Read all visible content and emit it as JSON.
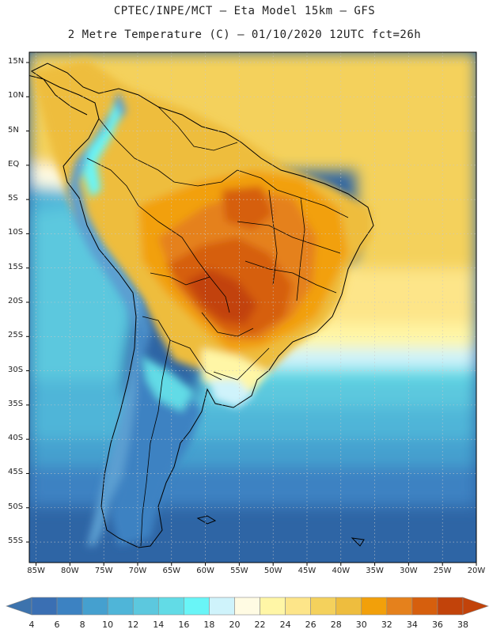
{
  "header": {
    "line1": "CPTEC/INPE/MCT –  Eta Model 15km – GFS",
    "line2": "2 Metre Temperature (C) – 01/10/2020 12UTC fct=26h"
  },
  "lat_labels": [
    "15N",
    "10N",
    "5N",
    "EQ",
    "5S",
    "10S",
    "15S",
    "20S",
    "25S",
    "30S",
    "35S",
    "40S",
    "45S",
    "50S",
    "55S"
  ],
  "lon_labels": [
    "85W",
    "80W",
    "75W",
    "70W",
    "65W",
    "60W",
    "55W",
    "50W",
    "45W",
    "40W",
    "35W",
    "30W",
    "25W",
    "20W"
  ],
  "colorbar": {
    "labels": [
      "4",
      "6",
      "8",
      "10",
      "12",
      "14",
      "16",
      "18",
      "20",
      "22",
      "24",
      "26",
      "28",
      "30",
      "32",
      "34",
      "36",
      "38"
    ],
    "colors": [
      "#3a6fb3",
      "#3c82c2",
      "#45a0cf",
      "#4fb5d8",
      "#5cc8de",
      "#62dbe6",
      "#69f5f7",
      "#cff3fb",
      "#fffbe3",
      "#fff6a6",
      "#fde589",
      "#f4d15c",
      "#eebd3e",
      "#f2a00a",
      "#e5811c",
      "#d65f0d",
      "#c2430a"
    ],
    "low_color": "#3d73ad",
    "high_color": "#c2430a"
  },
  "palette": {
    "land_cold": "#5b9fd1",
    "ocean_deep": "#2e65a5",
    "border": "#000000",
    "grid": "#c8c8c8"
  }
}
